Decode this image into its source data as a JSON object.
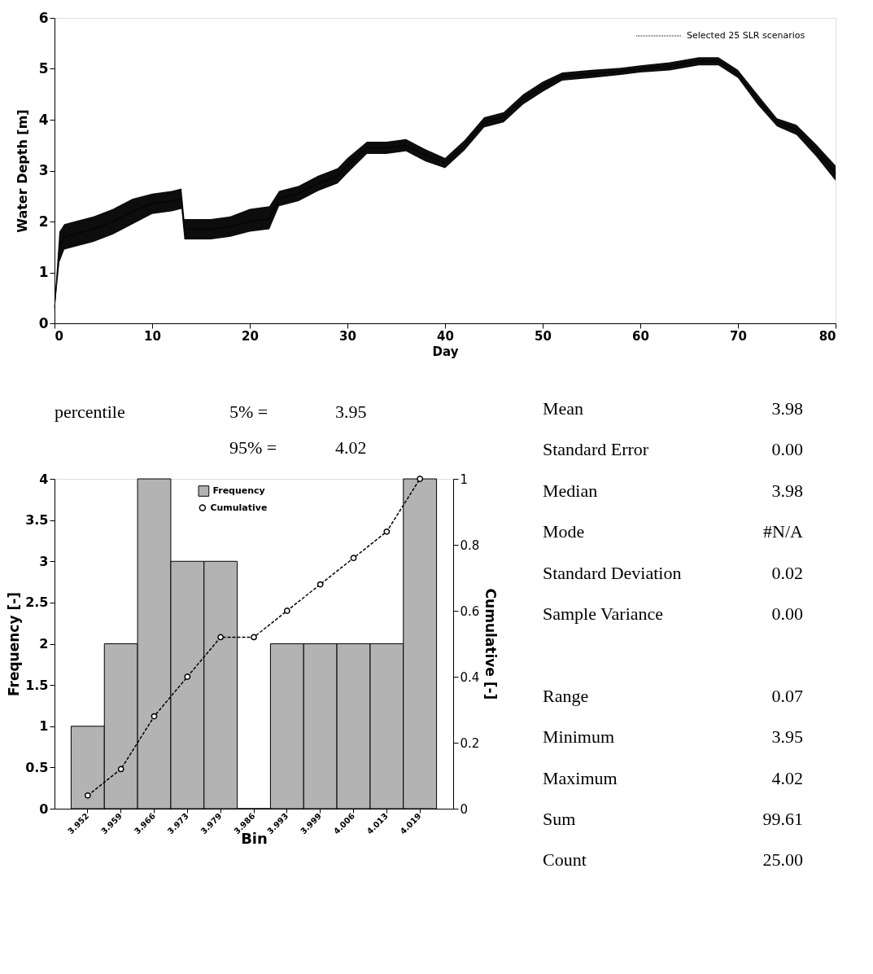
{
  "chart_data": [
    {
      "type": "line",
      "xlabel": "Day",
      "ylabel": "Water Depth [m]",
      "xlim": [
        0,
        80
      ],
      "ylim": [
        0,
        6
      ],
      "xticks": [
        0,
        10,
        20,
        30,
        40,
        50,
        60,
        70,
        80
      ],
      "yticks": [
        0,
        1,
        2,
        3,
        4,
        5,
        6
      ],
      "grid": false,
      "legend": "top right",
      "x": [
        0,
        0.5,
        1,
        2,
        4,
        6,
        8,
        10,
        12,
        13,
        13.3,
        14,
        16,
        18,
        20,
        22,
        23,
        25,
        27,
        29,
        30,
        32,
        34,
        36,
        38,
        40,
        42,
        44,
        46,
        48,
        50,
        52,
        55,
        58,
        60,
        63,
        66,
        68,
        70,
        72,
        74,
        76,
        78,
        80
      ],
      "series": [
        {
          "name": "Selected 25 SLR scenarios",
          "color": "#000000",
          "values": [
            0.3,
            1.5,
            1.7,
            1.75,
            1.85,
            2.0,
            2.2,
            2.35,
            2.4,
            2.45,
            1.85,
            1.85,
            1.85,
            1.9,
            2.0,
            2.05,
            2.45,
            2.55,
            2.75,
            2.9,
            3.1,
            3.45,
            3.45,
            3.5,
            3.3,
            3.15,
            3.5,
            3.95,
            4.05,
            4.4,
            4.65,
            4.85,
            4.9,
            4.95,
            5.0,
            5.05,
            5.15,
            5.15,
            4.9,
            4.4,
            3.95,
            3.8,
            3.4,
            2.95
          ],
          "lower": [
            0.25,
            1.2,
            1.45,
            1.5,
            1.6,
            1.75,
            1.95,
            2.15,
            2.2,
            2.25,
            1.65,
            1.65,
            1.65,
            1.7,
            1.8,
            1.85,
            2.3,
            2.4,
            2.6,
            2.75,
            2.95,
            3.33,
            3.33,
            3.38,
            3.18,
            3.05,
            3.4,
            3.85,
            3.95,
            4.3,
            4.55,
            4.77,
            4.82,
            4.88,
            4.93,
            4.97,
            5.07,
            5.07,
            4.82,
            4.3,
            3.87,
            3.7,
            3.28,
            2.8
          ],
          "upper": [
            0.4,
            1.8,
            1.95,
            2.0,
            2.1,
            2.25,
            2.45,
            2.55,
            2.6,
            2.65,
            2.05,
            2.05,
            2.05,
            2.1,
            2.25,
            2.3,
            2.6,
            2.7,
            2.9,
            3.05,
            3.25,
            3.57,
            3.57,
            3.62,
            3.42,
            3.25,
            3.6,
            4.05,
            4.15,
            4.5,
            4.75,
            4.93,
            4.98,
            5.02,
            5.07,
            5.13,
            5.23,
            5.23,
            4.98,
            4.5,
            4.03,
            3.9,
            3.52,
            3.1
          ]
        }
      ]
    },
    {
      "type": "other",
      "annotations": [
        "percentile",
        "5% =",
        "3.95",
        "95% =",
        "4.02"
      ]
    },
    {
      "type": "other",
      "annotations": [
        "Mean",
        "3.98",
        "Standard Error",
        "0.00",
        "Median",
        "3.98",
        "Mode",
        "#N/A",
        "Standard Deviation",
        "0.02",
        "Sample Variance",
        "0.00",
        "Range",
        "0.07",
        "Minimum",
        "3.95",
        "Maximum",
        "4.02",
        "Sum",
        "99.61",
        "Count",
        "25.00"
      ]
    },
    {
      "type": "bar",
      "xlabel": "Bin",
      "ylabel": "Frequency [-]",
      "y2label": "Cumulative [-]",
      "ylim": [
        0,
        4
      ],
      "yticks": [
        0,
        0.5,
        1,
        1.5,
        2,
        2.5,
        3,
        3.5,
        4
      ],
      "y2lim": [
        0,
        1
      ],
      "y2ticks": [
        0,
        0.2,
        0.4,
        0.6,
        0.8,
        1
      ],
      "grid": false,
      "legend": "top",
      "categories": [
        "3.952",
        "3.959",
        "3.966",
        "3.973",
        "3.979",
        "3.986",
        "3.993",
        "3.999",
        "4.006",
        "4.013",
        "4.019"
      ],
      "series": [
        {
          "name": "Frequency",
          "color": "#b3b3b3",
          "values": [
            1,
            2,
            4,
            3,
            3,
            0,
            2,
            2,
            2,
            2,
            4
          ]
        },
        {
          "name": "Cumulative",
          "type": "line",
          "axis": "y2",
          "color": "#000000",
          "marker": "circle",
          "line_style": "dashed",
          "values": [
            0.04,
            0.12,
            0.28,
            0.4,
            0.52,
            0.52,
            0.6,
            0.68,
            0.76,
            0.84,
            1.0
          ]
        }
      ]
    }
  ]
}
